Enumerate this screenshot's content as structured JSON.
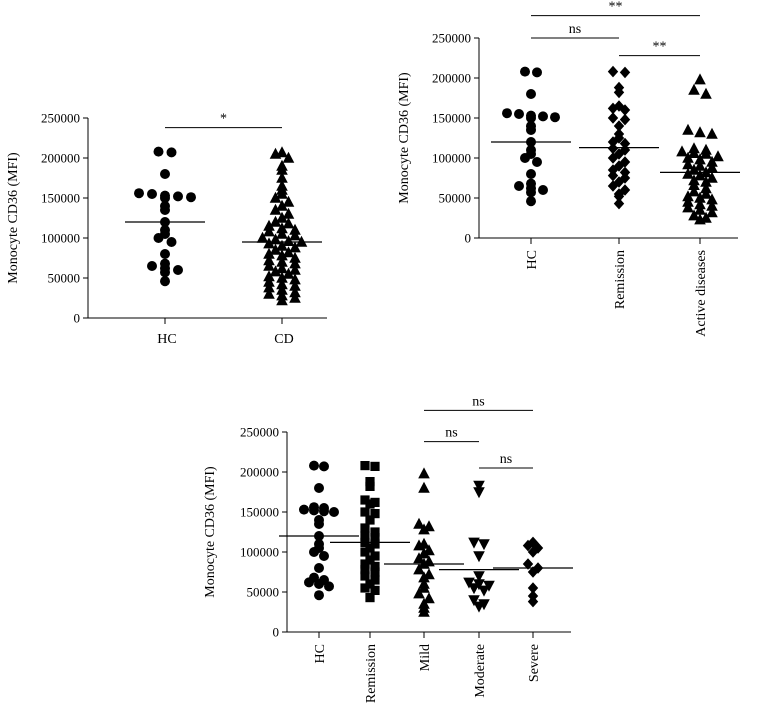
{
  "chart_data": [
    {
      "type": "scatter",
      "ylabel": "Monocyte CD36 (MFI)",
      "ylim": [
        0,
        250000
      ],
      "yticks": [
        "0",
        "50000",
        "100000",
        "150000",
        "200000",
        "250000"
      ],
      "tick_values": [
        0,
        50000,
        100000,
        150000,
        200000,
        250000
      ],
      "categories": [
        "HC",
        "CD"
      ],
      "rotate_labels": false,
      "groups": [
        {
          "name": "HC",
          "marker": "circle",
          "mean": 120000,
          "values": [
            208000,
            207000,
            180000,
            156000,
            155000,
            153000,
            152000,
            151000,
            150000,
            140000,
            135000,
            120000,
            110000,
            105000,
            100000,
            95000,
            80000,
            68000,
            65000,
            62000,
            60000,
            57000,
            46000
          ]
        },
        {
          "name": "CD",
          "marker": "triangle",
          "mean": 95000,
          "values": [
            207000,
            205000,
            200000,
            190000,
            185000,
            175000,
            165000,
            160000,
            155000,
            150000,
            145000,
            140000,
            135000,
            130000,
            125000,
            120000,
            118000,
            115000,
            112000,
            110000,
            108000,
            105000,
            103000,
            100000,
            98000,
            96000,
            95000,
            93000,
            90000,
            88000,
            85000,
            82000,
            80000,
            78000,
            75000,
            72000,
            70000,
            68000,
            65000,
            62000,
            60000,
            58000,
            55000,
            52000,
            50000,
            48000,
            45000,
            42000,
            40000,
            38000,
            35000,
            32000,
            30000,
            28000,
            25000,
            22000
          ]
        }
      ],
      "significance": [
        {
          "from": 0,
          "to": 1,
          "label": "*",
          "y": 238000
        }
      ]
    },
    {
      "type": "scatter",
      "ylabel": "Monocyte CD36 (MFI)",
      "ylim": [
        0,
        250000
      ],
      "yticks": [
        "0",
        "50000",
        "100000",
        "150000",
        "200000",
        "250000"
      ],
      "tick_values": [
        0,
        50000,
        100000,
        150000,
        200000,
        250000
      ],
      "categories": [
        "HC",
        "Remission",
        "Active diseases"
      ],
      "rotate_labels": true,
      "groups": [
        {
          "name": "HC",
          "marker": "circle",
          "mean": 120000,
          "values": [
            208000,
            207000,
            180000,
            156000,
            155000,
            153000,
            152000,
            151000,
            150000,
            140000,
            135000,
            120000,
            110000,
            105000,
            100000,
            95000,
            80000,
            68000,
            65000,
            62000,
            60000,
            57000,
            46000
          ]
        },
        {
          "name": "Remission",
          "marker": "diamond",
          "mean": 113000,
          "values": [
            208000,
            207000,
            188000,
            182000,
            165000,
            162000,
            160000,
            150000,
            148000,
            140000,
            130000,
            125000,
            120000,
            118000,
            112000,
            110000,
            105000,
            100000,
            95000,
            90000,
            85000,
            82000,
            78000,
            75000,
            70000,
            65000,
            60000,
            55000,
            52000,
            43000
          ]
        },
        {
          "name": "Active diseases",
          "marker": "triangle",
          "mean": 82000,
          "values": [
            198000,
            185000,
            180000,
            135000,
            132000,
            130000,
            112000,
            110000,
            108000,
            106000,
            105000,
            102000,
            100000,
            98000,
            95000,
            92000,
            90000,
            88000,
            85000,
            82000,
            80000,
            78000,
            75000,
            72000,
            70000,
            66000,
            62000,
            58000,
            55000,
            52000,
            50000,
            48000,
            45000,
            42000,
            40000,
            38000,
            35000,
            32000,
            28000,
            25000,
            23000
          ]
        }
      ],
      "significance": [
        {
          "from": 0,
          "to": 1,
          "label": "ns",
          "y": 250000
        },
        {
          "from": 0,
          "to": 2,
          "label": "**",
          "y": 278000
        },
        {
          "from": 1,
          "to": 2,
          "label": "**",
          "y": 228000
        }
      ]
    },
    {
      "type": "scatter",
      "ylabel": "Monocyte CD36 (MFI)",
      "ylim": [
        0,
        250000
      ],
      "yticks": [
        "0",
        "50000",
        "100000",
        "150000",
        "200000",
        "250000"
      ],
      "tick_values": [
        0,
        50000,
        100000,
        150000,
        200000,
        250000
      ],
      "categories": [
        "HC",
        "Remission",
        "Mild",
        "Moderate",
        "Severe"
      ],
      "rotate_labels": true,
      "groups": [
        {
          "name": "HC",
          "marker": "circle",
          "mean": 120000,
          "values": [
            208000,
            207000,
            180000,
            156000,
            155000,
            153000,
            152000,
            151000,
            150000,
            140000,
            135000,
            120000,
            110000,
            105000,
            100000,
            95000,
            80000,
            68000,
            65000,
            62000,
            60000,
            57000,
            46000
          ]
        },
        {
          "name": "Remission",
          "marker": "square",
          "mean": 112000,
          "values": [
            208000,
            207000,
            188000,
            182000,
            165000,
            162000,
            160000,
            150000,
            148000,
            140000,
            130000,
            125000,
            120000,
            118000,
            112000,
            110000,
            105000,
            100000,
            95000,
            90000,
            85000,
            82000,
            78000,
            75000,
            70000,
            65000,
            60000,
            55000,
            52000,
            43000
          ]
        },
        {
          "name": "Mild",
          "marker": "triangle",
          "mean": 85000,
          "values": [
            198000,
            180000,
            135000,
            132000,
            128000,
            110000,
            108000,
            102000,
            98000,
            92000,
            88000,
            85000,
            78000,
            72000,
            68000,
            60000,
            55000,
            48000,
            42000,
            35000,
            30000,
            25000
          ]
        },
        {
          "name": "Moderate",
          "marker": "triangle-down",
          "mean": 78000,
          "values": [
            183000,
            175000,
            112000,
            110000,
            95000,
            70000,
            62000,
            60000,
            58000,
            55000,
            52000,
            40000,
            35000,
            32000
          ]
        },
        {
          "name": "Severe",
          "marker": "diamond",
          "mean": 80000,
          "values": [
            112000,
            108000,
            105000,
            100000,
            85000,
            80000,
            75000,
            55000,
            45000,
            38000
          ]
        }
      ],
      "significance": [
        {
          "from": 2,
          "to": 3,
          "label": "ns",
          "y": 238000
        },
        {
          "from": 2,
          "to": 4,
          "label": "ns",
          "y": 277000
        },
        {
          "from": 3,
          "to": 4,
          "label": "ns",
          "y": 205000
        }
      ]
    }
  ]
}
